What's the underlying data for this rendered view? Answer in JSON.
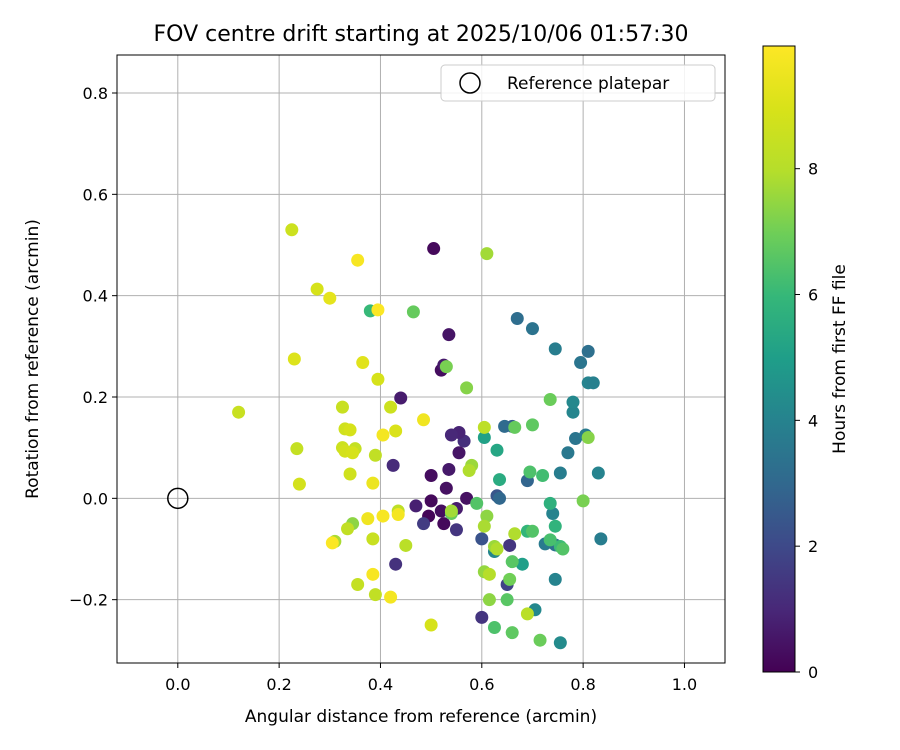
{
  "chart_data": {
    "type": "scatter",
    "title": "FOV centre drift starting at 2025/10/06 01:57:30",
    "xlabel": "Angular distance from reference (arcmin)",
    "ylabel": "Rotation from reference (arcmin)",
    "xlim": [
      -0.12,
      1.08
    ],
    "ylim": [
      -0.325,
      0.875
    ],
    "xticks": [
      0.0,
      0.2,
      0.4,
      0.6,
      0.8,
      1.0
    ],
    "xtick_labels": [
      "0.0",
      "0.2",
      "0.4",
      "0.6",
      "0.8",
      "1.0"
    ],
    "yticks": [
      -0.2,
      0.0,
      0.2,
      0.4,
      0.6,
      0.8
    ],
    "ytick_labels": [
      "−0.2",
      "0.0",
      "0.2",
      "0.4",
      "0.6",
      "0.8"
    ],
    "grid": true,
    "legend": {
      "position": "upper right",
      "entries": [
        "Reference platepar"
      ]
    },
    "reference": {
      "x": 0.0,
      "y": 0.0
    },
    "colorbar": {
      "label": "Hours from first FF file",
      "cmap": "viridis",
      "range": [
        0,
        9.95
      ],
      "ticks": [
        0,
        2,
        4,
        6,
        8
      ],
      "tick_labels": [
        "0",
        "2",
        "4",
        "6",
        "8"
      ]
    },
    "columns": [
      "x",
      "y",
      "hours"
    ],
    "points": [
      [
        0.505,
        0.493,
        0.2
      ],
      [
        0.535,
        0.323,
        0.5
      ],
      [
        0.52,
        0.253,
        0.3
      ],
      [
        0.525,
        0.263,
        0.6
      ],
      [
        0.44,
        0.198,
        0.7
      ],
      [
        0.565,
        0.113,
        1.2
      ],
      [
        0.555,
        0.13,
        0.9
      ],
      [
        0.54,
        0.125,
        1.0
      ],
      [
        0.555,
        0.09,
        0.5
      ],
      [
        0.5,
        0.045,
        0.3
      ],
      [
        0.535,
        0.057,
        0.6
      ],
      [
        0.53,
        0.02,
        0.4
      ],
      [
        0.57,
        0.0,
        0.4
      ],
      [
        0.5,
        -0.005,
        0.2
      ],
      [
        0.55,
        -0.02,
        0.7
      ],
      [
        0.47,
        -0.015,
        0.8
      ],
      [
        0.52,
        -0.025,
        0.3
      ],
      [
        0.495,
        -0.035,
        0.1
      ],
      [
        0.525,
        -0.05,
        0.2
      ],
      [
        0.485,
        -0.05,
        1.6
      ],
      [
        0.55,
        -0.062,
        1.4
      ],
      [
        0.425,
        0.065,
        1.1
      ],
      [
        0.43,
        -0.13,
        1.3
      ],
      [
        0.6,
        -0.235,
        1.4
      ],
      [
        0.6,
        -0.08,
        2.3
      ],
      [
        0.655,
        -0.093,
        1.4
      ],
      [
        0.65,
        -0.17,
        1.8
      ],
      [
        0.63,
        0.005,
        2.4
      ],
      [
        0.635,
        0.0,
        3.0
      ],
      [
        0.69,
        0.035,
        2.9
      ],
      [
        0.66,
        0.142,
        2.6
      ],
      [
        0.645,
        0.142,
        3.1
      ],
      [
        0.67,
        0.355,
        3.2
      ],
      [
        0.7,
        0.335,
        3.4
      ],
      [
        0.745,
        0.295,
        3.8
      ],
      [
        0.795,
        0.268,
        3.5
      ],
      [
        0.81,
        0.29,
        3.3
      ],
      [
        0.81,
        0.228,
        4.0
      ],
      [
        0.82,
        0.228,
        3.9
      ],
      [
        0.78,
        0.17,
        4.1
      ],
      [
        0.78,
        0.19,
        4.2
      ],
      [
        0.785,
        0.118,
        3.5
      ],
      [
        0.805,
        0.125,
        3.7
      ],
      [
        0.77,
        0.09,
        3.6
      ],
      [
        0.83,
        0.05,
        4.0
      ],
      [
        0.755,
        0.05,
        3.8
      ],
      [
        0.74,
        -0.03,
        4.0
      ],
      [
        0.725,
        -0.09,
        3.7
      ],
      [
        0.745,
        -0.092,
        3.3
      ],
      [
        0.705,
        -0.22,
        4.2
      ],
      [
        0.745,
        -0.16,
        4.0
      ],
      [
        0.755,
        -0.285,
        4.3
      ],
      [
        0.835,
        -0.08,
        3.8
      ],
      [
        0.68,
        -0.13,
        5.0
      ],
      [
        0.625,
        -0.105,
        4.1
      ],
      [
        0.63,
        0.095,
        5.3
      ],
      [
        0.635,
        0.037,
        5.5
      ],
      [
        0.605,
        0.12,
        5.1
      ],
      [
        0.69,
        -0.065,
        5.9
      ],
      [
        0.735,
        -0.01,
        5.7
      ],
      [
        0.745,
        -0.055,
        5.8
      ],
      [
        0.755,
        -0.095,
        6.1
      ],
      [
        0.735,
        -0.082,
        6.3
      ],
      [
        0.72,
        0.045,
        6.2
      ],
      [
        0.695,
        0.052,
        6.4
      ],
      [
        0.7,
        -0.065,
        6.5
      ],
      [
        0.66,
        -0.125,
        6.6
      ],
      [
        0.665,
        0.14,
        6.8
      ],
      [
        0.7,
        0.145,
        6.7
      ],
      [
        0.735,
        0.195,
        6.9
      ],
      [
        0.76,
        -0.1,
        6.5
      ],
      [
        0.655,
        -0.16,
        7.0
      ],
      [
        0.65,
        -0.2,
        6.6
      ],
      [
        0.625,
        -0.255,
        6.4
      ],
      [
        0.66,
        -0.265,
        6.7
      ],
      [
        0.715,
        -0.28,
        6.9
      ],
      [
        0.8,
        -0.005,
        7.1
      ],
      [
        0.81,
        0.12,
        7.3
      ],
      [
        0.59,
        -0.01,
        6.5
      ],
      [
        0.54,
        -0.03,
        6.8
      ],
      [
        0.38,
        0.37,
        6.0
      ],
      [
        0.465,
        0.368,
        6.8
      ],
      [
        0.53,
        0.26,
        7.1
      ],
      [
        0.57,
        0.218,
        7.3
      ],
      [
        0.58,
        0.065,
        7.6
      ],
      [
        0.575,
        0.055,
        7.9
      ],
      [
        0.61,
        -0.035,
        7.4
      ],
      [
        0.605,
        -0.055,
        7.8
      ],
      [
        0.625,
        -0.095,
        7.6
      ],
      [
        0.63,
        -0.1,
        7.9
      ],
      [
        0.605,
        -0.145,
        7.5
      ],
      [
        0.615,
        -0.15,
        8.0
      ],
      [
        0.615,
        -0.2,
        7.4
      ],
      [
        0.69,
        -0.228,
        8.1
      ],
      [
        0.665,
        -0.07,
        7.9
      ],
      [
        0.61,
        0.483,
        7.7
      ],
      [
        0.605,
        0.14,
        8.2
      ],
      [
        0.54,
        -0.025,
        7.7
      ],
      [
        0.345,
        -0.05,
        7.4
      ],
      [
        0.31,
        -0.085,
        7.8
      ],
      [
        0.335,
        -0.06,
        8.3
      ],
      [
        0.45,
        -0.093,
        8.1
      ],
      [
        0.385,
        -0.08,
        8.5
      ],
      [
        0.435,
        -0.025,
        8.2
      ],
      [
        0.39,
        -0.19,
        8.3
      ],
      [
        0.355,
        -0.17,
        8.4
      ],
      [
        0.225,
        0.53,
        8.6
      ],
      [
        0.275,
        0.413,
        8.9
      ],
      [
        0.12,
        0.17,
        8.5
      ],
      [
        0.235,
        0.098,
        8.4
      ],
      [
        0.24,
        0.028,
        8.8
      ],
      [
        0.325,
        0.18,
        8.5
      ],
      [
        0.39,
        0.085,
        8.3
      ],
      [
        0.33,
        0.137,
        8.7
      ],
      [
        0.34,
        0.135,
        8.9
      ],
      [
        0.325,
        0.1,
        8.6
      ],
      [
        0.33,
        0.093,
        8.8
      ],
      [
        0.35,
        0.098,
        8.4
      ],
      [
        0.345,
        0.09,
        8.9
      ],
      [
        0.34,
        0.048,
        8.7
      ],
      [
        0.42,
        0.18,
        8.6
      ],
      [
        0.395,
        0.235,
        8.9
      ],
      [
        0.365,
        0.268,
        9.2
      ],
      [
        0.43,
        0.133,
        9.0
      ],
      [
        0.5,
        -0.25,
        8.9
      ],
      [
        0.23,
        0.275,
        9.1
      ],
      [
        0.3,
        0.395,
        9.3
      ],
      [
        0.355,
        0.47,
        9.8
      ],
      [
        0.395,
        0.372,
        9.9
      ],
      [
        0.405,
        0.125,
        9.7
      ],
      [
        0.485,
        0.155,
        9.6
      ],
      [
        0.385,
        0.03,
        9.5
      ],
      [
        0.375,
        -0.04,
        9.6
      ],
      [
        0.405,
        -0.035,
        9.8
      ],
      [
        0.435,
        -0.032,
        9.7
      ],
      [
        0.385,
        -0.15,
        9.8
      ],
      [
        0.42,
        -0.195,
        9.7
      ],
      [
        0.305,
        -0.088,
        9.9
      ]
    ]
  }
}
